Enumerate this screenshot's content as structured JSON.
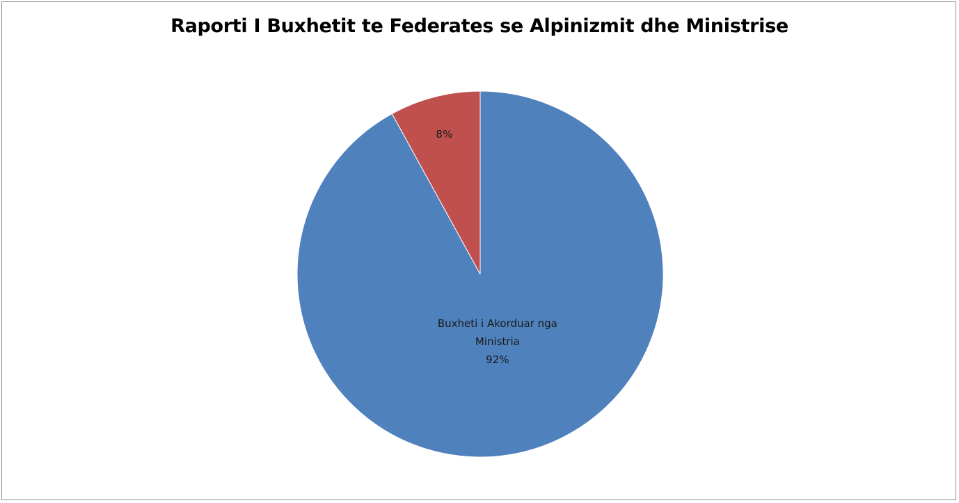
{
  "chart_data": {
    "type": "pie",
    "title": "Raporti I Buxhetit te Federates se Alpinizmit dhe Ministrise",
    "slices": [
      {
        "name_lines": [
          "Buxheti i Akorduar nga",
          "Ministria"
        ],
        "value": 92,
        "label": "92%",
        "color": "#4F81BD"
      },
      {
        "name_lines": [],
        "value": 8,
        "label": "8%",
        "color": "#C0504D"
      }
    ],
    "start_angle_deg": 0,
    "direction": "clockwise",
    "legend": "none"
  }
}
